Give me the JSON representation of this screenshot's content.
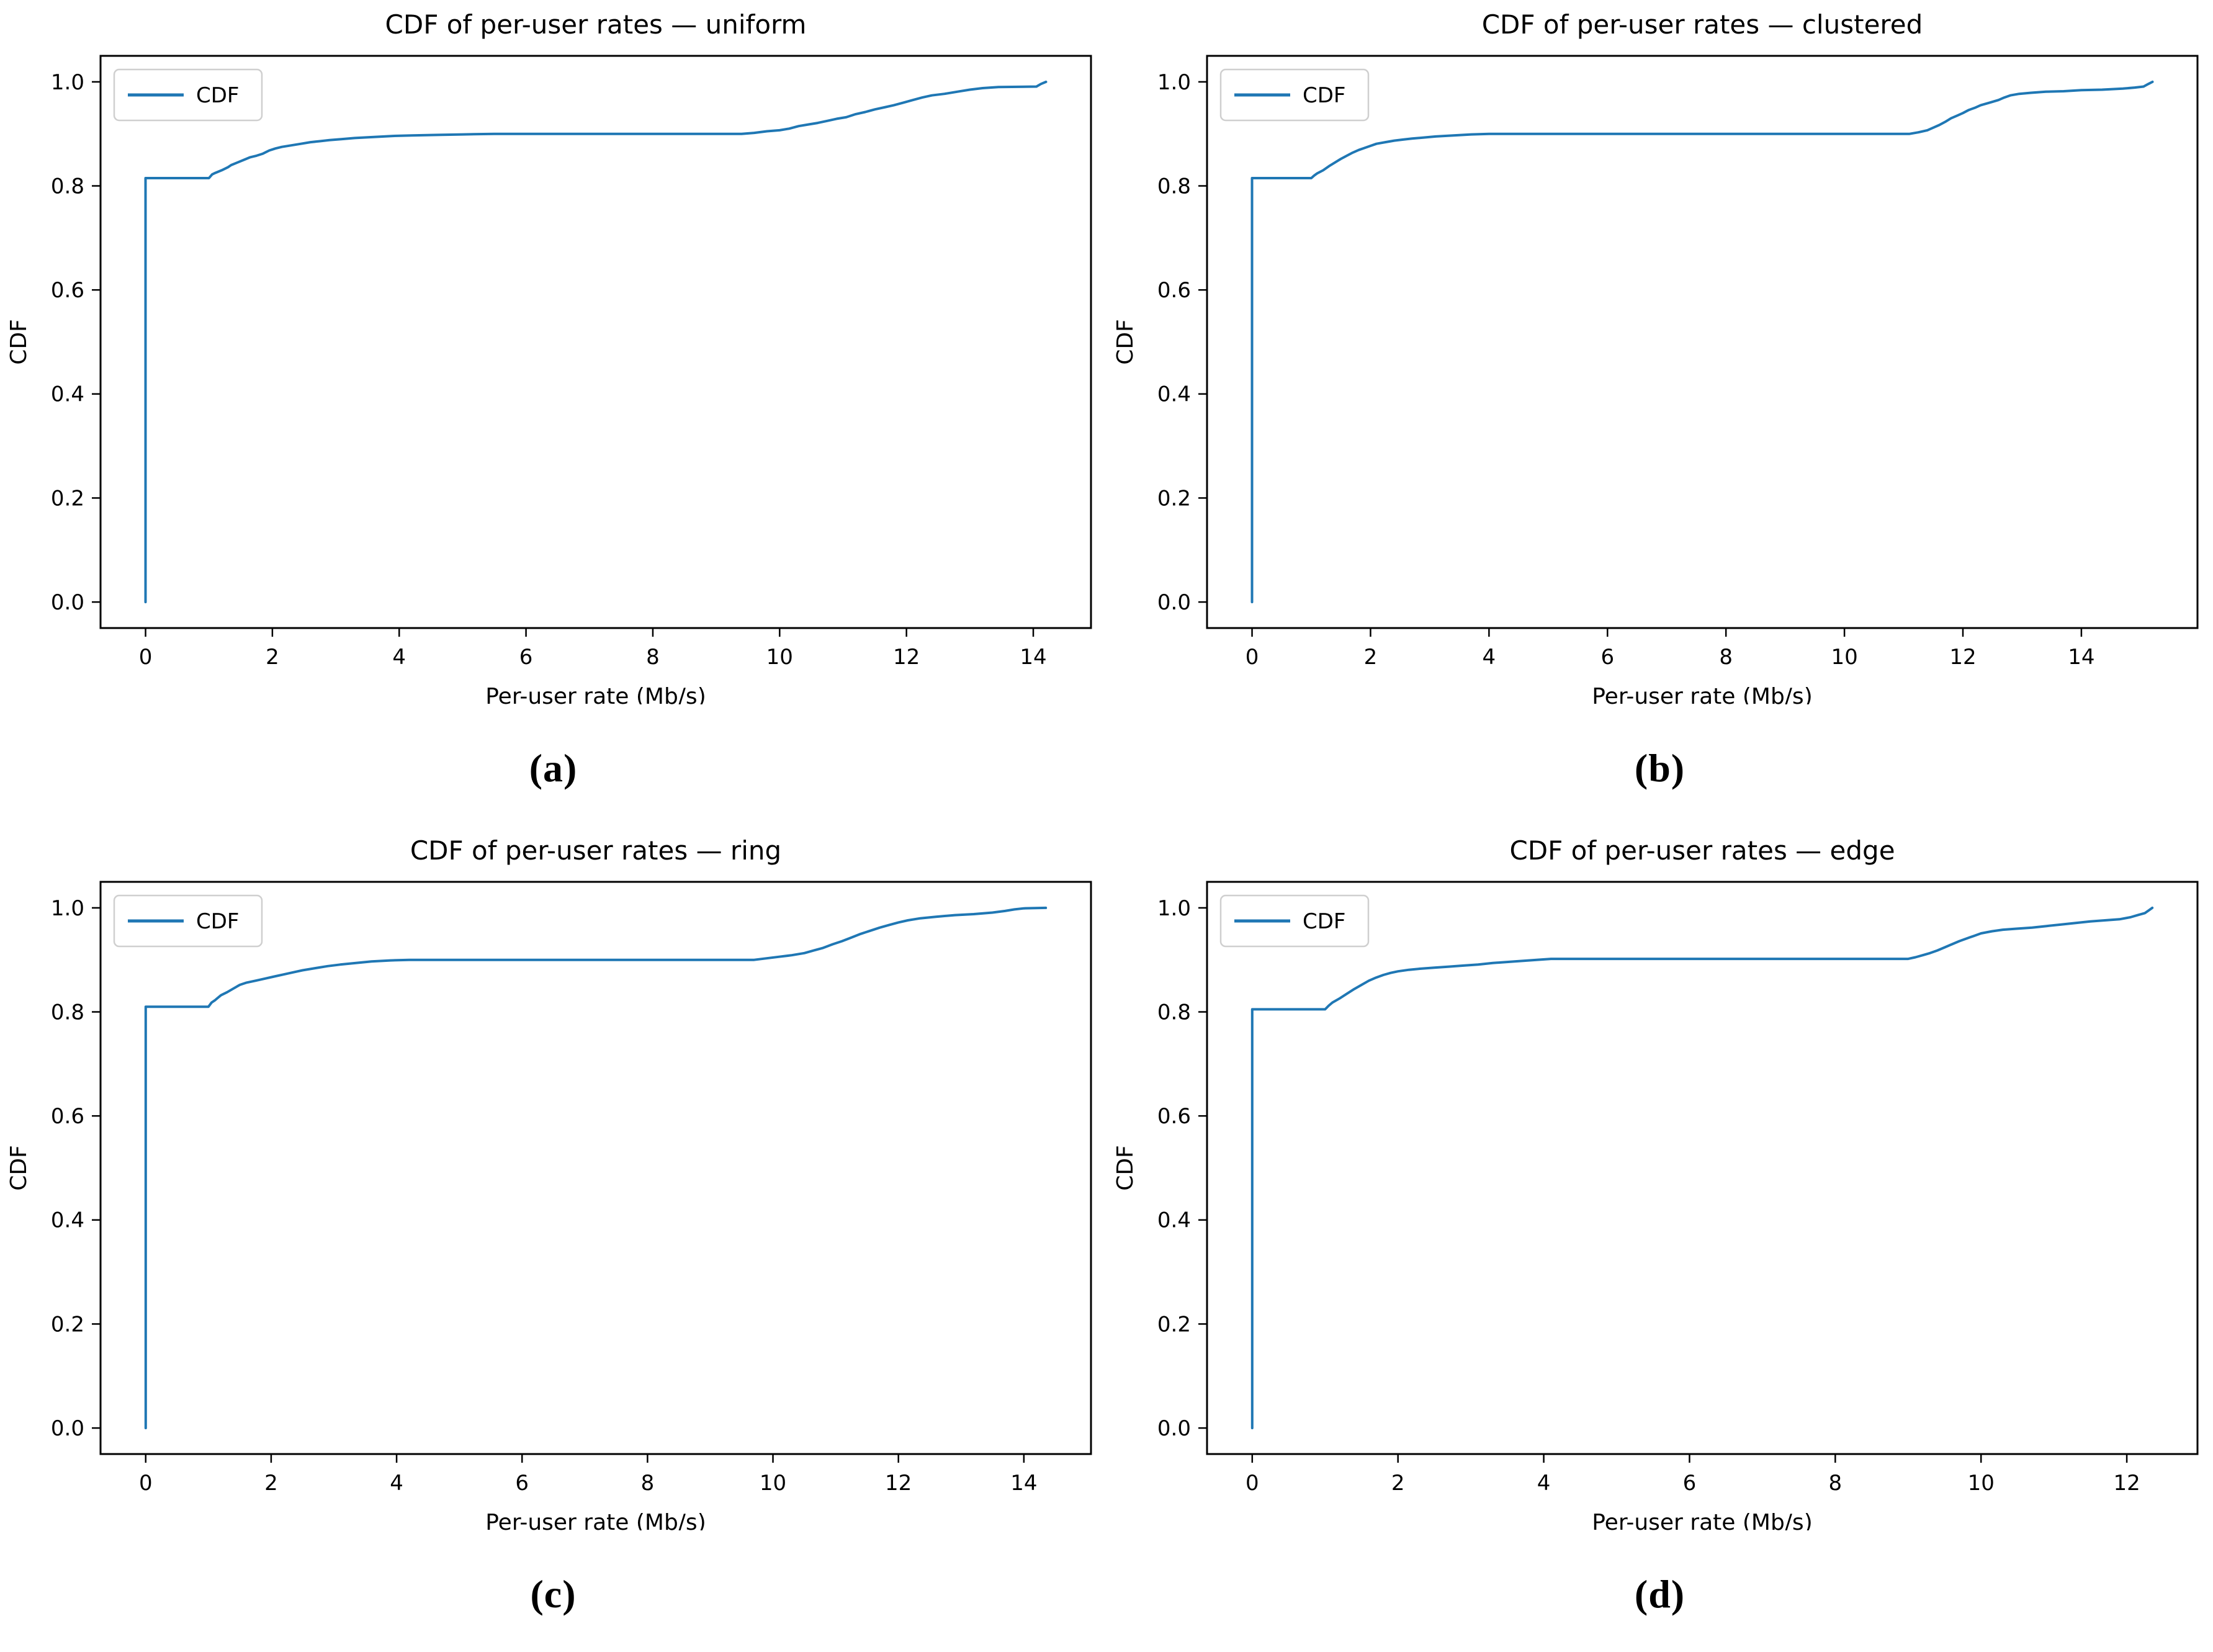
{
  "figure": {
    "background": "#ffffff",
    "text_color": "#000000",
    "spine_color": "#000000",
    "line_color": "#1f77b4",
    "legend_border_color": "#cfcfcf",
    "legend_background": "#ffffff"
  },
  "chart_data": [
    {
      "type": "line",
      "title": "CDF of per-user rates — uniform",
      "xlabel": "Per-user rate (Mb/s)",
      "ylabel": "CDF",
      "legend": [
        "CDF"
      ],
      "legend_position": "upper left",
      "caption": "(a)",
      "xlim": [
        -0.71,
        14.91
      ],
      "ylim": [
        -0.05,
        1.05
      ],
      "xticks": [
        0,
        2,
        4,
        6,
        8,
        10,
        12,
        14
      ],
      "yticks": [
        0.0,
        0.2,
        0.4,
        0.6,
        0.8,
        1.0
      ],
      "grid": false,
      "series": [
        {
          "name": "CDF",
          "color": "#1f77b4",
          "points": [
            [
              0,
              0
            ],
            [
              0,
              0.815
            ],
            [
              1.0,
              0.815
            ],
            [
              1.05,
              0.822
            ],
            [
              1.1,
              0.825
            ],
            [
              1.2,
              0.83
            ],
            [
              1.3,
              0.836
            ],
            [
              1.35,
              0.84
            ],
            [
              1.45,
              0.845
            ],
            [
              1.55,
              0.85
            ],
            [
              1.65,
              0.855
            ],
            [
              1.75,
              0.858
            ],
            [
              1.85,
              0.862
            ],
            [
              1.95,
              0.868
            ],
            [
              2.05,
              0.872
            ],
            [
              2.15,
              0.875
            ],
            [
              2.3,
              0.878
            ],
            [
              2.45,
              0.881
            ],
            [
              2.6,
              0.884
            ],
            [
              2.75,
              0.886
            ],
            [
              2.9,
              0.888
            ],
            [
              3.1,
              0.89
            ],
            [
              3.3,
              0.892
            ],
            [
              3.6,
              0.894
            ],
            [
              3.9,
              0.896
            ],
            [
              4.2,
              0.897
            ],
            [
              4.6,
              0.898
            ],
            [
              5.0,
              0.899
            ],
            [
              5.5,
              0.9
            ],
            [
              9.4,
              0.9
            ],
            [
              9.6,
              0.902
            ],
            [
              9.8,
              0.905
            ],
            [
              10.0,
              0.907
            ],
            [
              10.15,
              0.91
            ],
            [
              10.3,
              0.915
            ],
            [
              10.45,
              0.918
            ],
            [
              10.6,
              0.921
            ],
            [
              10.75,
              0.925
            ],
            [
              10.9,
              0.929
            ],
            [
              11.05,
              0.932
            ],
            [
              11.2,
              0.938
            ],
            [
              11.35,
              0.942
            ],
            [
              11.5,
              0.947
            ],
            [
              11.65,
              0.951
            ],
            [
              11.8,
              0.955
            ],
            [
              11.95,
              0.96
            ],
            [
              12.1,
              0.965
            ],
            [
              12.25,
              0.97
            ],
            [
              12.4,
              0.974
            ],
            [
              12.6,
              0.977
            ],
            [
              12.8,
              0.981
            ],
            [
              13.0,
              0.985
            ],
            [
              13.2,
              0.988
            ],
            [
              13.45,
              0.99
            ],
            [
              14.05,
              0.991
            ],
            [
              14.12,
              0.996
            ],
            [
              14.2,
              1.0
            ]
          ]
        }
      ]
    },
    {
      "type": "line",
      "title": "CDF of per-user rates — clustered",
      "xlabel": "Per-user rate (Mb/s)",
      "ylabel": "CDF",
      "legend": [
        "CDF"
      ],
      "legend_position": "upper left",
      "caption": "(b)",
      "xlim": [
        -0.76,
        15.96
      ],
      "ylim": [
        -0.05,
        1.05
      ],
      "xticks": [
        0,
        2,
        4,
        6,
        8,
        10,
        12,
        14
      ],
      "yticks": [
        0.0,
        0.2,
        0.4,
        0.6,
        0.8,
        1.0
      ],
      "grid": false,
      "series": [
        {
          "name": "CDF",
          "color": "#1f77b4",
          "points": [
            [
              0,
              0
            ],
            [
              0,
              0.815
            ],
            [
              1.0,
              0.815
            ],
            [
              1.05,
              0.82
            ],
            [
              1.1,
              0.824
            ],
            [
              1.2,
              0.83
            ],
            [
              1.3,
              0.838
            ],
            [
              1.4,
              0.845
            ],
            [
              1.5,
              0.852
            ],
            [
              1.6,
              0.858
            ],
            [
              1.7,
              0.864
            ],
            [
              1.8,
              0.869
            ],
            [
              1.9,
              0.873
            ],
            [
              2.0,
              0.877
            ],
            [
              2.1,
              0.881
            ],
            [
              2.25,
              0.884
            ],
            [
              2.4,
              0.887
            ],
            [
              2.55,
              0.889
            ],
            [
              2.7,
              0.891
            ],
            [
              2.9,
              0.893
            ],
            [
              3.1,
              0.895
            ],
            [
              3.4,
              0.897
            ],
            [
              3.7,
              0.899
            ],
            [
              4.0,
              0.9
            ],
            [
              11.1,
              0.9
            ],
            [
              11.25,
              0.903
            ],
            [
              11.4,
              0.907
            ],
            [
              11.5,
              0.912
            ],
            [
              11.6,
              0.917
            ],
            [
              11.7,
              0.923
            ],
            [
              11.8,
              0.93
            ],
            [
              11.9,
              0.935
            ],
            [
              12.0,
              0.94
            ],
            [
              12.1,
              0.946
            ],
            [
              12.2,
              0.95
            ],
            [
              12.3,
              0.955
            ],
            [
              12.45,
              0.96
            ],
            [
              12.6,
              0.965
            ],
            [
              12.7,
              0.97
            ],
            [
              12.8,
              0.974
            ],
            [
              12.95,
              0.977
            ],
            [
              13.15,
              0.979
            ],
            [
              13.4,
              0.981
            ],
            [
              13.7,
              0.982
            ],
            [
              14.0,
              0.984
            ],
            [
              14.35,
              0.985
            ],
            [
              14.7,
              0.987
            ],
            [
              14.9,
              0.989
            ],
            [
              15.05,
              0.991
            ],
            [
              15.13,
              0.996
            ],
            [
              15.2,
              1.0
            ]
          ]
        }
      ]
    },
    {
      "type": "line",
      "title": "CDF of per-user rates — ring",
      "xlabel": "Per-user rate (Mb/s)",
      "ylabel": "CDF",
      "legend": [
        "CDF"
      ],
      "legend_position": "upper left",
      "caption": "(c)",
      "xlim": [
        -0.72,
        15.07
      ],
      "ylim": [
        -0.05,
        1.05
      ],
      "xticks": [
        0,
        2,
        4,
        6,
        8,
        10,
        12,
        14
      ],
      "yticks": [
        0.0,
        0.2,
        0.4,
        0.6,
        0.8,
        1.0
      ],
      "grid": false,
      "series": [
        {
          "name": "CDF",
          "color": "#1f77b4",
          "points": [
            [
              0,
              0
            ],
            [
              0,
              0.81
            ],
            [
              1.0,
              0.81
            ],
            [
              1.05,
              0.818
            ],
            [
              1.1,
              0.822
            ],
            [
              1.15,
              0.827
            ],
            [
              1.2,
              0.832
            ],
            [
              1.3,
              0.838
            ],
            [
              1.4,
              0.845
            ],
            [
              1.5,
              0.852
            ],
            [
              1.6,
              0.856
            ],
            [
              1.75,
              0.86
            ],
            [
              1.9,
              0.864
            ],
            [
              2.05,
              0.868
            ],
            [
              2.2,
              0.872
            ],
            [
              2.35,
              0.876
            ],
            [
              2.5,
              0.88
            ],
            [
              2.7,
              0.884
            ],
            [
              2.9,
              0.888
            ],
            [
              3.1,
              0.891
            ],
            [
              3.35,
              0.894
            ],
            [
              3.6,
              0.897
            ],
            [
              3.9,
              0.899
            ],
            [
              4.2,
              0.9
            ],
            [
              9.7,
              0.9
            ],
            [
              9.9,
              0.903
            ],
            [
              10.1,
              0.906
            ],
            [
              10.3,
              0.909
            ],
            [
              10.5,
              0.913
            ],
            [
              10.65,
              0.918
            ],
            [
              10.8,
              0.923
            ],
            [
              10.95,
              0.93
            ],
            [
              11.1,
              0.936
            ],
            [
              11.25,
              0.943
            ],
            [
              11.4,
              0.95
            ],
            [
              11.55,
              0.956
            ],
            [
              11.7,
              0.962
            ],
            [
              11.85,
              0.967
            ],
            [
              12.0,
              0.972
            ],
            [
              12.15,
              0.976
            ],
            [
              12.35,
              0.98
            ],
            [
              12.6,
              0.983
            ],
            [
              12.9,
              0.986
            ],
            [
              13.2,
              0.988
            ],
            [
              13.5,
              0.991
            ],
            [
              13.7,
              0.994
            ],
            [
              13.85,
              0.997
            ],
            [
              14.0,
              0.999
            ],
            [
              14.35,
              1.0
            ]
          ]
        }
      ]
    },
    {
      "type": "line",
      "title": "CDF of per-user rates — edge",
      "xlabel": "Per-user rate (Mb/s)",
      "ylabel": "CDF",
      "legend": [
        "CDF"
      ],
      "legend_position": "upper left",
      "caption": "(d)",
      "xlim": [
        -0.62,
        12.97
      ],
      "ylim": [
        -0.05,
        1.05
      ],
      "xticks": [
        0,
        2,
        4,
        6,
        8,
        10,
        12
      ],
      "yticks": [
        0.0,
        0.2,
        0.4,
        0.6,
        0.8,
        1.0
      ],
      "grid": false,
      "series": [
        {
          "name": "CDF",
          "color": "#1f77b4",
          "points": [
            [
              0,
              0
            ],
            [
              0,
              0.805
            ],
            [
              1.0,
              0.805
            ],
            [
              1.05,
              0.812
            ],
            [
              1.1,
              0.818
            ],
            [
              1.2,
              0.826
            ],
            [
              1.3,
              0.835
            ],
            [
              1.4,
              0.844
            ],
            [
              1.5,
              0.852
            ],
            [
              1.6,
              0.86
            ],
            [
              1.7,
              0.866
            ],
            [
              1.8,
              0.871
            ],
            [
              1.9,
              0.875
            ],
            [
              2.0,
              0.878
            ],
            [
              2.15,
              0.881
            ],
            [
              2.3,
              0.883
            ],
            [
              2.5,
              0.885
            ],
            [
              2.7,
              0.887
            ],
            [
              2.9,
              0.889
            ],
            [
              3.1,
              0.891
            ],
            [
              3.3,
              0.894
            ],
            [
              3.6,
              0.897
            ],
            [
              3.9,
              0.9
            ],
            [
              4.1,
              0.902
            ],
            [
              9.0,
              0.902
            ],
            [
              9.1,
              0.905
            ],
            [
              9.2,
              0.909
            ],
            [
              9.3,
              0.913
            ],
            [
              9.4,
              0.918
            ],
            [
              9.5,
              0.924
            ],
            [
              9.6,
              0.93
            ],
            [
              9.7,
              0.936
            ],
            [
              9.8,
              0.941
            ],
            [
              9.9,
              0.946
            ],
            [
              10.0,
              0.951
            ],
            [
              10.15,
              0.955
            ],
            [
              10.3,
              0.958
            ],
            [
              10.5,
              0.96
            ],
            [
              10.7,
              0.962
            ],
            [
              10.9,
              0.965
            ],
            [
              11.1,
              0.968
            ],
            [
              11.3,
              0.971
            ],
            [
              11.5,
              0.974
            ],
            [
              11.7,
              0.976
            ],
            [
              11.9,
              0.978
            ],
            [
              12.05,
              0.982
            ],
            [
              12.15,
              0.986
            ],
            [
              12.25,
              0.99
            ],
            [
              12.3,
              0.995
            ],
            [
              12.35,
              1.0
            ]
          ]
        }
      ]
    }
  ]
}
